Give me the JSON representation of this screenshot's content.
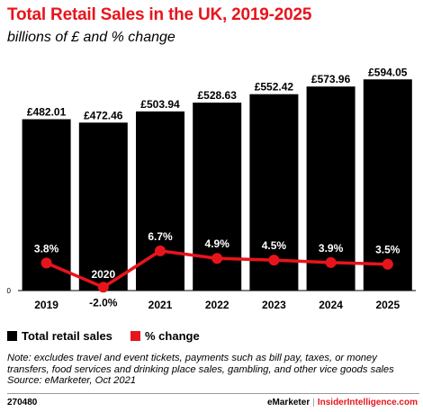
{
  "chart_data": {
    "type": "bar",
    "title": "Total Retail Sales in the UK, 2019-2025",
    "subtitle": "billions of £ and % change",
    "categories": [
      "2019",
      "2020",
      "2021",
      "2022",
      "2023",
      "2024",
      "2025"
    ],
    "series": [
      {
        "name": "Total retail sales",
        "type": "bar",
        "color": "#000000",
        "values": [
          482.01,
          472.46,
          503.94,
          528.63,
          552.42,
          573.96,
          594.05
        ],
        "labels": [
          "£482.01",
          "£472.46",
          "£503.94",
          "£528.63",
          "£552.42",
          "£573.96",
          "£594.05"
        ]
      },
      {
        "name": "% change",
        "type": "line",
        "color": "#e8141c",
        "values": [
          3.8,
          -2.0,
          6.7,
          4.9,
          4.5,
          3.9,
          3.5
        ],
        "labels": [
          "3.8%",
          "-2.0%",
          "6.7%",
          "4.9%",
          "4.5%",
          "3.9%",
          "3.5%"
        ]
      }
    ],
    "ylim": [
      0,
      620
    ],
    "zero_label": "0",
    "grid": false,
    "legend": "bottom-left"
  },
  "note": "Note: excludes travel and event tickets, payments such as bill pay, taxes, or money transfers, food services and drinking place sales, gambling, and other vice goods sales",
  "source": "Source: eMarketer, Oct 2021",
  "footer": {
    "id": "270480",
    "brand_left": "eMarketer",
    "separator": "|",
    "brand_right": "InsiderIntelligence.com"
  }
}
